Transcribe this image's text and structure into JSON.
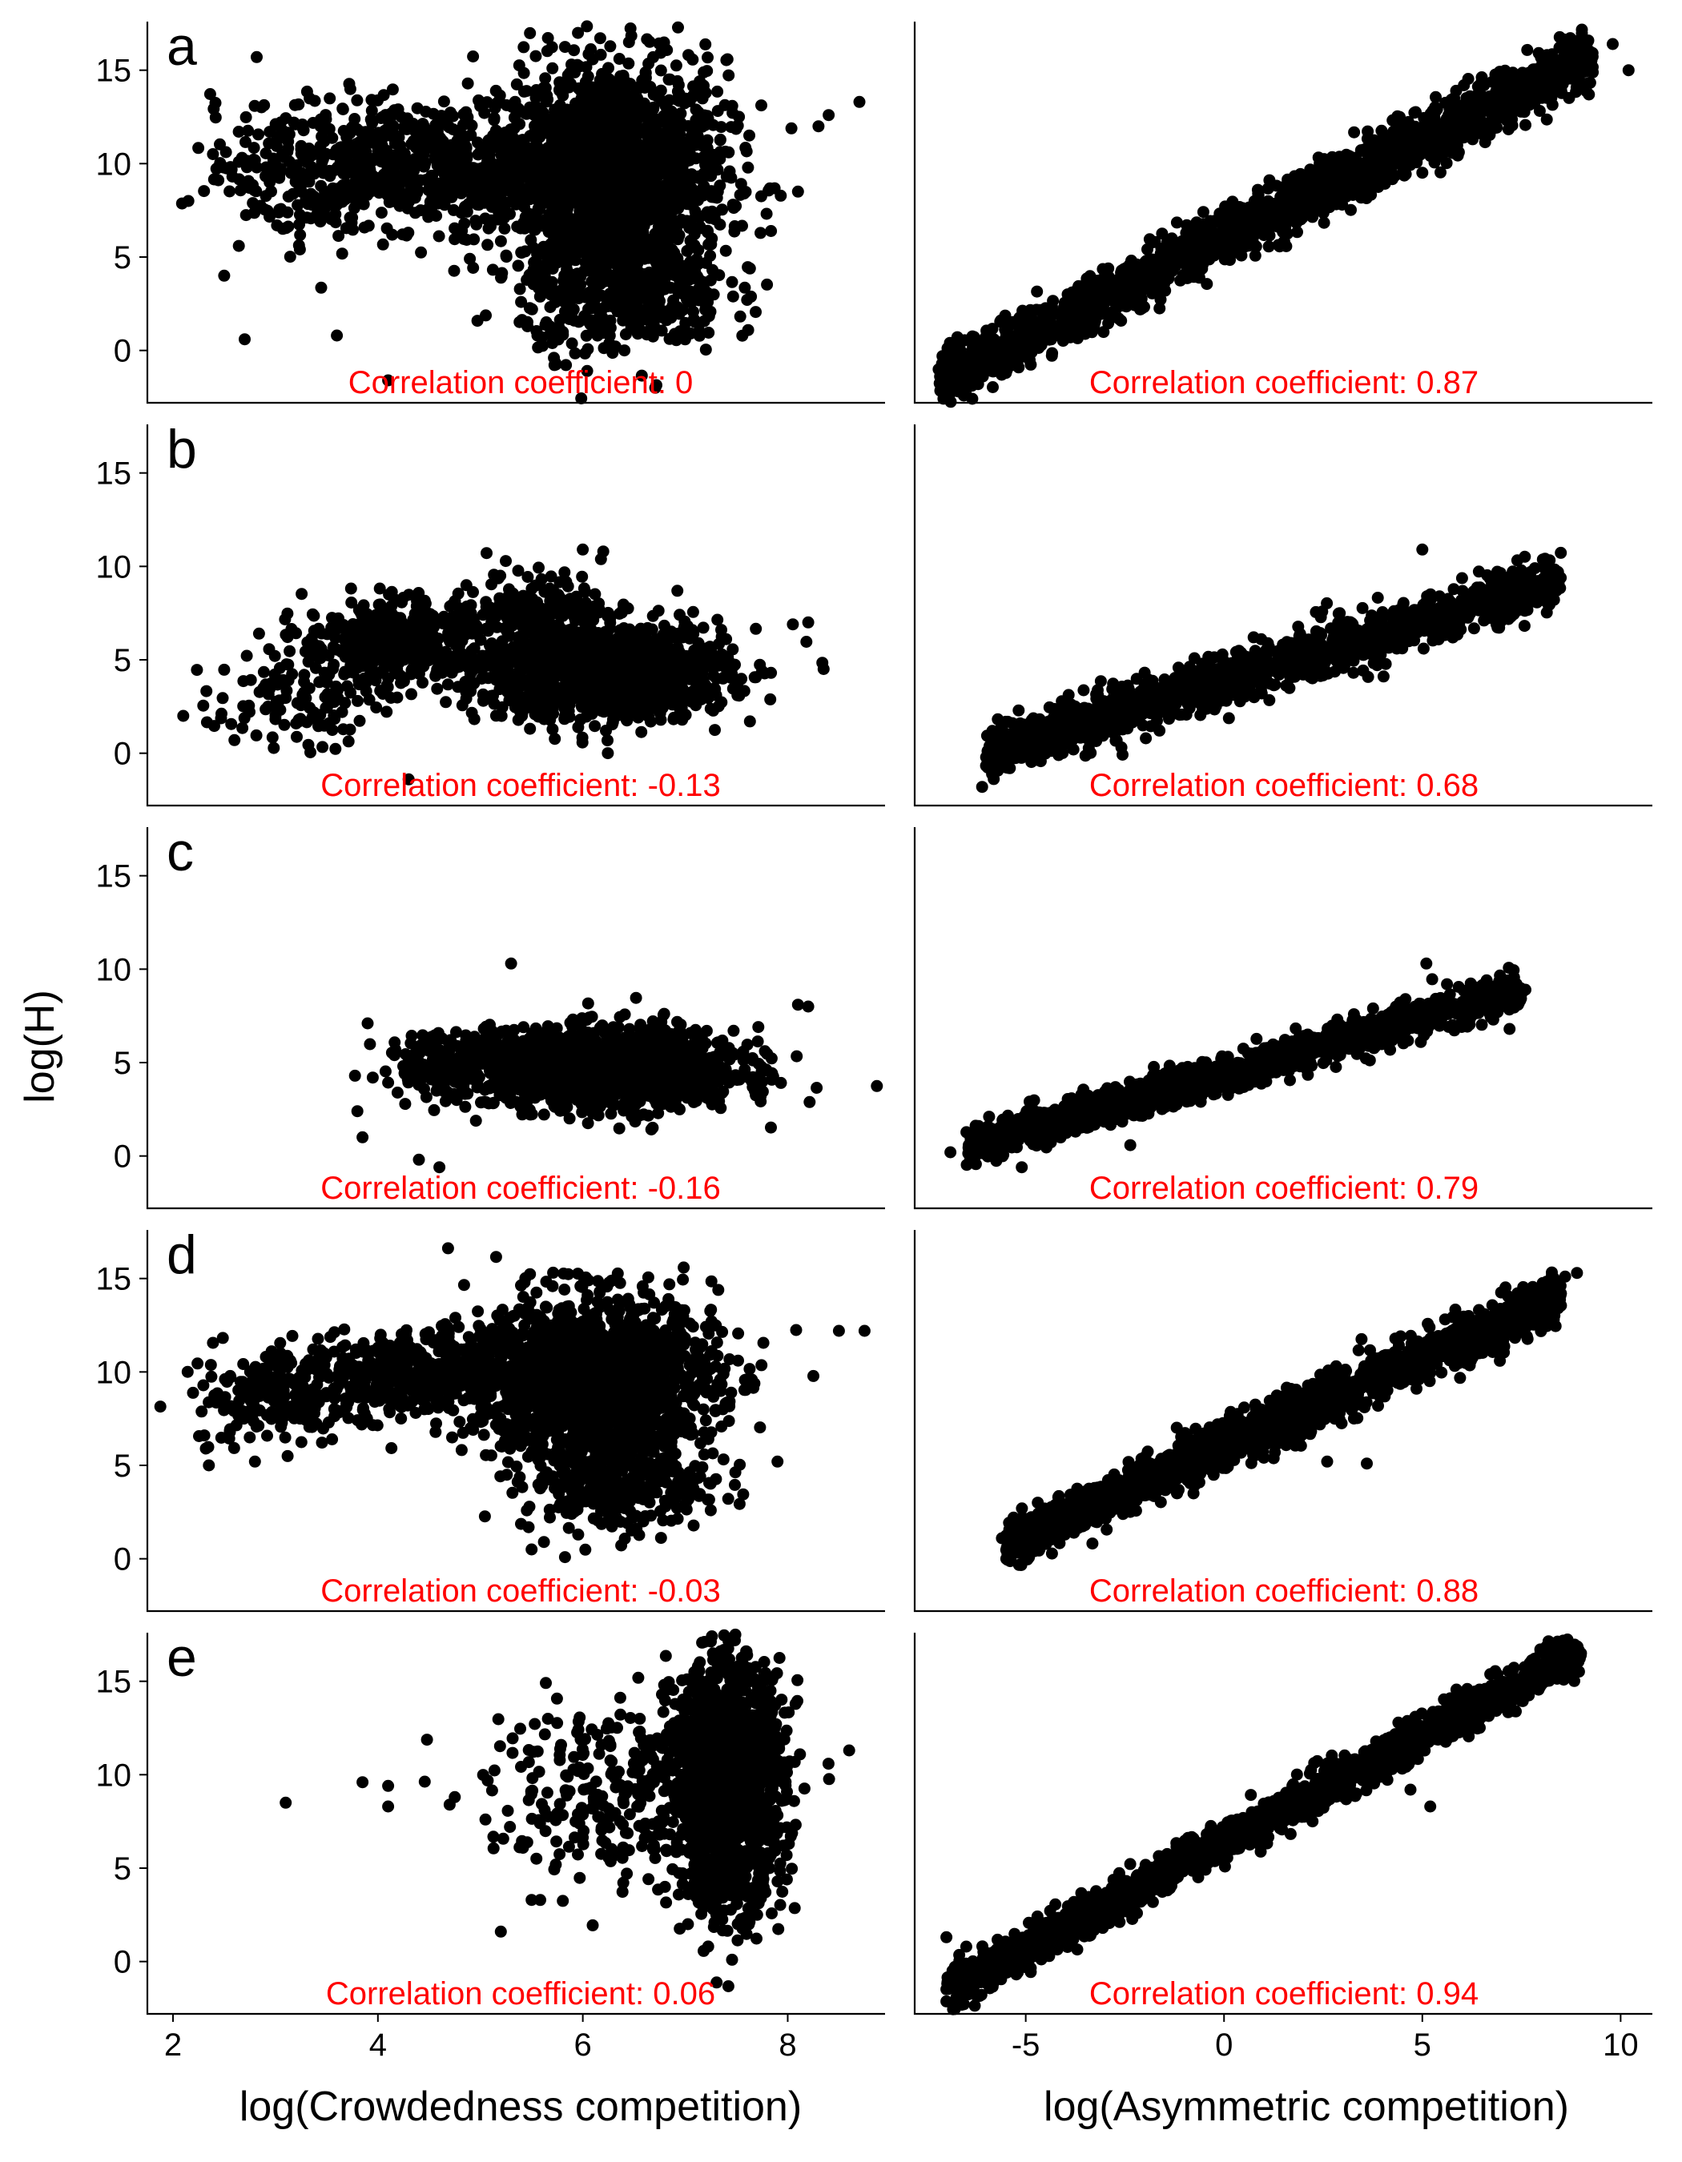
{
  "figure": {
    "ylabel": "log(H)",
    "xlabel_left": "log(Crowdedness competition)",
    "xlabel_right": "log(Asymmetric competition)",
    "point_color": "#000000",
    "annotation_color": "#ff0000",
    "axis_color": "#000000"
  },
  "axes": {
    "left_xlim": [
      1.75,
      8.95
    ],
    "left_xticks": [
      "2",
      "4",
      "6",
      "8"
    ],
    "right_xlim": [
      -7.8,
      10.8
    ],
    "right_xticks": [
      "-5",
      "0",
      "5",
      "10"
    ],
    "ylim": [
      -2.8,
      17.6
    ],
    "yticks": [
      "0",
      "5",
      "10",
      "15"
    ]
  },
  "chart_data": [
    {
      "type": "scatter",
      "panel": "a",
      "side": "left",
      "annotation": "Correlation coefficient: 0",
      "clouds": [
        {
          "cx": 6.3,
          "cy": 9.5,
          "sx": 0.55,
          "sy": 3.0,
          "n": 1600
        },
        {
          "cx": 4.6,
          "cy": 10.0,
          "sx": 0.9,
          "sy": 1.6,
          "n": 700
        },
        {
          "cx": 3.4,
          "cy": 9.5,
          "sx": 0.5,
          "sy": 2.0,
          "n": 180
        },
        {
          "cx": 6.4,
          "cy": 3.0,
          "sx": 0.5,
          "sy": 1.6,
          "n": 400
        }
      ],
      "points": [
        [
          2.15,
          8.0
        ],
        [
          2.5,
          4.0
        ],
        [
          2.7,
          0.6
        ],
        [
          8.7,
          13.3
        ],
        [
          8.3,
          12.0
        ],
        [
          8.1,
          8.5
        ],
        [
          4.1,
          -1.6
        ],
        [
          3.6,
          0.8
        ],
        [
          8.4,
          12.6
        ]
      ]
    },
    {
      "type": "scatter",
      "panel": "a",
      "side": "right",
      "annotation": "Correlation coefficient: 0.87",
      "trend": {
        "intercept": 6.0,
        "slope": 1.05,
        "xmin": -7.2,
        "xmax": 9.3,
        "spread": 0.75,
        "n": 2000
      },
      "points": [
        [
          10.2,
          15.0
        ],
        [
          -6.2,
          -1.8
        ],
        [
          -5.5,
          -1.2
        ],
        [
          9.8,
          16.4
        ],
        [
          9.2,
          13.7
        ],
        [
          -7.1,
          -0.3
        ]
      ]
    },
    {
      "type": "scatter",
      "panel": "b",
      "side": "left",
      "annotation": "Correlation coefficient: -0.13",
      "clouds": [
        {
          "cx": 6.2,
          "cy": 4.4,
          "sx": 0.6,
          "sy": 1.3,
          "n": 1300
        },
        {
          "cx": 4.2,
          "cy": 6.0,
          "sx": 0.45,
          "sy": 1.1,
          "n": 450
        },
        {
          "cx": 3.2,
          "cy": 3.0,
          "sx": 0.4,
          "sy": 1.3,
          "n": 120
        },
        {
          "cx": 5.6,
          "cy": 8.0,
          "sx": 0.3,
          "sy": 1.0,
          "n": 120
        }
      ],
      "points": [
        [
          2.1,
          2.0
        ],
        [
          8.2,
          7.0
        ],
        [
          8.05,
          6.9
        ],
        [
          6.0,
          10.9
        ],
        [
          6.2,
          10.8
        ],
        [
          4.3,
          -1.4
        ],
        [
          2.6,
          0.7
        ]
      ]
    },
    {
      "type": "scatter",
      "panel": "b",
      "side": "right",
      "annotation": "Correlation coefficient: 0.68",
      "trend": {
        "intercept": 3.9,
        "slope": 0.63,
        "xmin": -6.0,
        "xmax": 8.5,
        "spread": 0.7,
        "n": 1400
      },
      "points": [
        [
          -6.1,
          -1.8
        ],
        [
          -5.4,
          -0.8
        ],
        [
          5.0,
          10.9
        ],
        [
          8.4,
          9.4
        ],
        [
          8.1,
          9.4
        ]
      ]
    },
    {
      "type": "scatter",
      "panel": "c",
      "side": "left",
      "annotation": "Correlation coefficient: -0.16",
      "clouds": [
        {
          "cx": 6.3,
          "cy": 4.7,
          "sx": 0.6,
          "sy": 1.05,
          "n": 1400
        },
        {
          "cx": 4.8,
          "cy": 4.9,
          "sx": 0.4,
          "sy": 0.9,
          "n": 200
        }
      ],
      "points": [
        [
          3.9,
          7.1
        ],
        [
          3.95,
          4.2
        ],
        [
          3.8,
          2.4
        ],
        [
          3.85,
          1.0
        ],
        [
          4.4,
          -0.2
        ],
        [
          4.6,
          -0.6
        ],
        [
          8.2,
          8.0
        ],
        [
          8.1,
          8.1
        ],
        [
          5.3,
          10.3
        ]
      ]
    },
    {
      "type": "scatter",
      "panel": "c",
      "side": "right",
      "annotation": "Correlation coefficient: 0.79",
      "trend": {
        "intercept": 4.4,
        "slope": 0.6,
        "xmin": -6.5,
        "xmax": 7.5,
        "spread": 0.5,
        "n": 1400
      },
      "points": [
        [
          -6.9,
          0.2
        ],
        [
          -6.3,
          0.2
        ],
        [
          -5.1,
          -0.6
        ],
        [
          5.1,
          10.3
        ],
        [
          7.2,
          6.8
        ],
        [
          7.6,
          8.9
        ]
      ]
    },
    {
      "type": "scatter",
      "panel": "d",
      "side": "left",
      "annotation": "Correlation coefficient: -0.03",
      "clouds": [
        {
          "cx": 6.1,
          "cy": 9.6,
          "sx": 0.6,
          "sy": 2.2,
          "n": 1600
        },
        {
          "cx": 4.2,
          "cy": 9.8,
          "sx": 0.7,
          "sy": 1.1,
          "n": 500
        },
        {
          "cx": 3.0,
          "cy": 8.3,
          "sx": 0.4,
          "sy": 1.1,
          "n": 150
        },
        {
          "cx": 6.3,
          "cy": 4.0,
          "sx": 0.45,
          "sy": 1.3,
          "n": 300
        }
      ],
      "points": [
        [
          2.35,
          5.0
        ],
        [
          2.8,
          5.2
        ],
        [
          8.5,
          12.2
        ],
        [
          8.75,
          12.2
        ],
        [
          5.5,
          0.5
        ],
        [
          7.6,
          9.6
        ],
        [
          7.9,
          5.2
        ]
      ]
    },
    {
      "type": "scatter",
      "panel": "d",
      "side": "right",
      "annotation": "Correlation coefficient: 0.88",
      "trend": {
        "intercept": 6.0,
        "slope": 0.95,
        "xmin": -5.5,
        "xmax": 8.5,
        "spread": 0.65,
        "n": 1800
      },
      "points": [
        [
          -5.6,
          1.1
        ],
        [
          -5.0,
          1.2
        ],
        [
          8.6,
          15.1
        ],
        [
          8.9,
          15.3
        ],
        [
          2.6,
          5.2
        ],
        [
          3.6,
          5.1
        ]
      ]
    },
    {
      "type": "scatter",
      "panel": "e",
      "side": "left",
      "annotation": "Correlation coefficient: 0.06",
      "clouds": [
        {
          "cx": 7.4,
          "cy": 9.5,
          "sx": 0.28,
          "sy": 3.2,
          "n": 1500
        },
        {
          "cx": 6.3,
          "cy": 9.0,
          "sx": 0.6,
          "sy": 2.4,
          "n": 250
        }
      ],
      "points": [
        [
          3.1,
          8.5
        ],
        [
          3.85,
          9.6
        ],
        [
          4.1,
          8.3
        ],
        [
          4.1,
          9.4
        ],
        [
          4.7,
          8.4
        ],
        [
          4.75,
          8.8
        ],
        [
          5.05,
          7.6
        ],
        [
          8.6,
          11.3
        ],
        [
          5.2,
          1.6
        ],
        [
          5.5,
          3.3
        ]
      ]
    },
    {
      "type": "scatter",
      "panel": "e",
      "side": "right",
      "annotation": "Correlation coefficient: 0.94",
      "trend": {
        "intercept": 6.4,
        "slope": 1.13,
        "xmin": -7.0,
        "xmax": 9.0,
        "spread": 0.55,
        "n": 1900
      },
      "points": [
        [
          -7.0,
          1.3
        ],
        [
          -6.5,
          0.8
        ],
        [
          9.0,
          16.5
        ],
        [
          5.2,
          8.3
        ],
        [
          4.7,
          9.2
        ],
        [
          -0.6,
          5.0
        ]
      ]
    }
  ]
}
